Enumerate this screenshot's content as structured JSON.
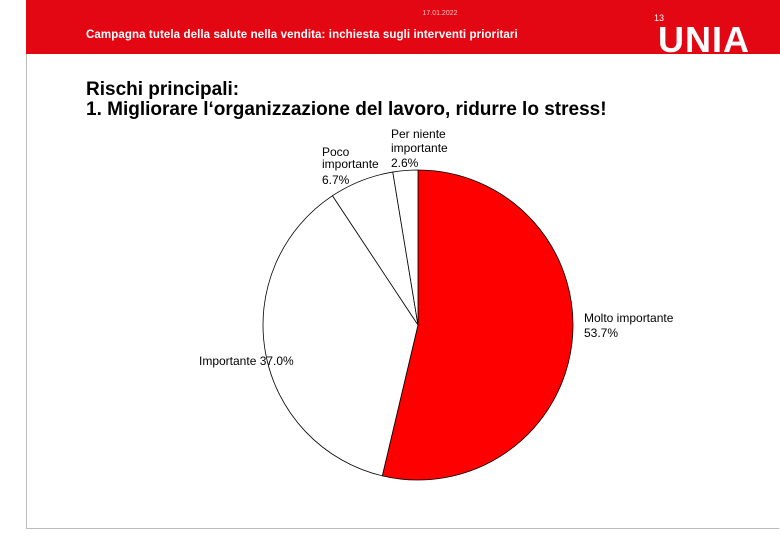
{
  "header": {
    "date": "17.01.2022",
    "page_number": "13",
    "subtitle": "Campagna tutela della salute nella vendita: inchiesta sugli interventi prioritari",
    "logo": "UNIA",
    "accent_color": "#e30613"
  },
  "slide": {
    "title_line1": "Rischi principali:",
    "title_line2": "1. Migliorare l‘organizzazione del lavoro, ridurre lo stress!"
  },
  "chart_data": {
    "type": "pie",
    "title": "",
    "slices": [
      {
        "label": "Molto importante",
        "value": 53.7,
        "value_label": "53.7%",
        "color": "#ff0000"
      },
      {
        "label": "Importante",
        "value": 37.0,
        "value_label": "37.0%",
        "color": "#ffffff"
      },
      {
        "label": "Poco importante",
        "value": 6.7,
        "value_label": "6.7%",
        "color": "#ffffff"
      },
      {
        "label": "Per niente importante",
        "value": 2.6,
        "value_label": "2.6%",
        "color": "#ffffff"
      }
    ],
    "start": "12 o'clock",
    "direction": "clockwise"
  }
}
